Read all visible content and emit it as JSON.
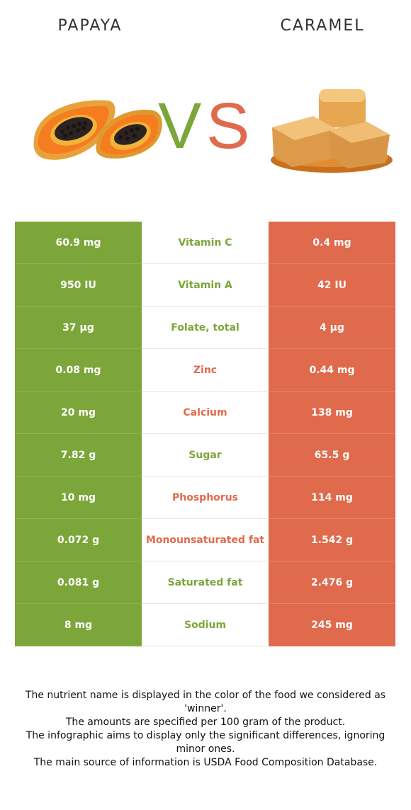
{
  "left_food": {
    "name": "PAPAYA"
  },
  "right_food": {
    "name": "CARAMEL"
  },
  "vs": {
    "v": "V",
    "s": "S"
  },
  "colors": {
    "winner_left": "#7ca63a",
    "winner_right": "#e06a4c"
  },
  "rows": [
    {
      "nutrient": "Vitamin C",
      "left": "60.9 mg",
      "right": "0.4 mg",
      "winner": "left"
    },
    {
      "nutrient": "Vitamin A",
      "left": "950 IU",
      "right": "42 IU",
      "winner": "left"
    },
    {
      "nutrient": "Folate, total",
      "left": "37 µg",
      "right": "4 µg",
      "winner": "left"
    },
    {
      "nutrient": "Zinc",
      "left": "0.08 mg",
      "right": "0.44 mg",
      "winner": "right"
    },
    {
      "nutrient": "Calcium",
      "left": "20 mg",
      "right": "138 mg",
      "winner": "right"
    },
    {
      "nutrient": "Sugar",
      "left": "7.82 g",
      "right": "65.5 g",
      "winner": "left"
    },
    {
      "nutrient": "Phosphorus",
      "left": "10 mg",
      "right": "114 mg",
      "winner": "right"
    },
    {
      "nutrient": "Monounsaturated fat",
      "left": "0.072 g",
      "right": "1.542 g",
      "winner": "right"
    },
    {
      "nutrient": "Saturated fat",
      "left": "0.081 g",
      "right": "2.476 g",
      "winner": "left"
    },
    {
      "nutrient": "Sodium",
      "left": "8 mg",
      "right": "245 mg",
      "winner": "left"
    }
  ],
  "footnote": [
    "The nutrient name is displayed in the color of the food we considered as 'winner'.",
    "The amounts are specified per 100 gram of the product.",
    "The infographic aims to display only the significant differences, ignoring minor ones.",
    "The main source of information is USDA Food Composition Database."
  ]
}
